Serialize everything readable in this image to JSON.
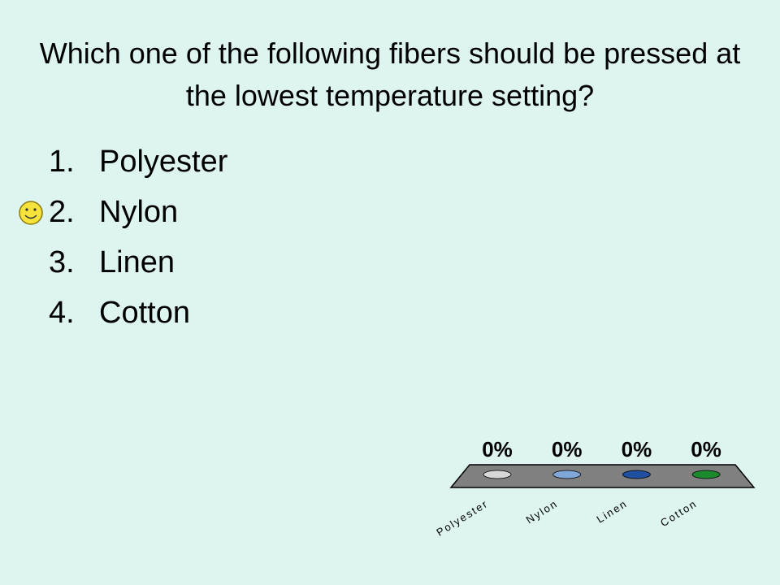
{
  "question": "Which one of the following fibers should be pressed at the lowest temperature setting?",
  "options": [
    {
      "number": "1.",
      "text": "Polyester"
    },
    {
      "number": "2.",
      "text": "Nylon"
    },
    {
      "number": "3.",
      "text": "Linen"
    },
    {
      "number": "4.",
      "text": "Cotton"
    }
  ],
  "chart_data": {
    "type": "bar",
    "categories": [
      "Polyester",
      "Nylon",
      "Linen",
      "Cotton"
    ],
    "values": [
      0,
      0,
      0,
      0
    ],
    "value_labels": [
      "0%",
      "0%",
      "0%",
      "0%"
    ],
    "colors": [
      "#d8d8d8",
      "#7fa7d8",
      "#1f4f9e",
      "#1b8a2e"
    ],
    "ylim": [
      0,
      100
    ]
  }
}
